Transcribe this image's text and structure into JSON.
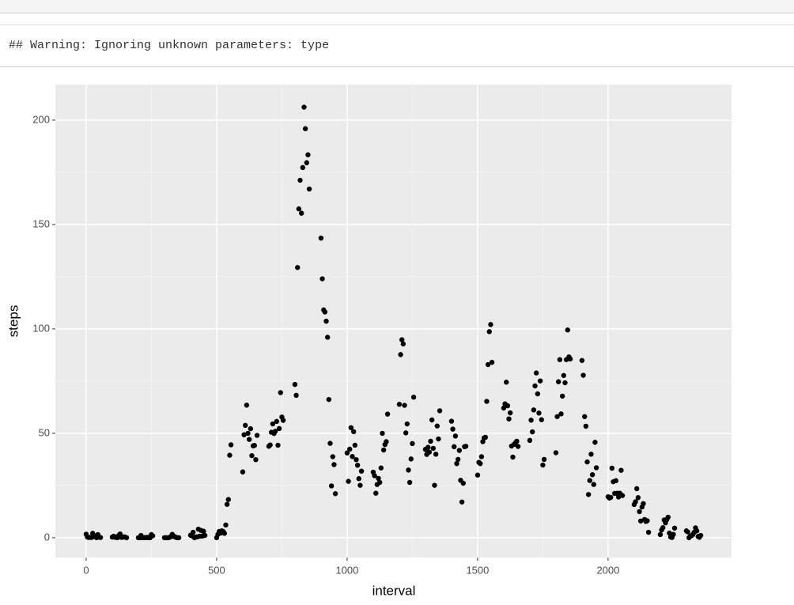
{
  "output": {
    "warning": "## Warning: Ignoring unknown parameters: type"
  },
  "chart_data": {
    "type": "scatter",
    "x_label": "interval",
    "y_label": "steps",
    "color": "#000000",
    "grid": true,
    "xlim": [
      -118,
      2473
    ],
    "ylim": [
      -9.5,
      217
    ],
    "xticks": [
      0,
      500,
      1000,
      1500,
      2000
    ],
    "yticks": [
      0,
      50,
      100,
      150,
      200
    ],
    "x": [
      0,
      5,
      10,
      15,
      20,
      25,
      30,
      35,
      40,
      45,
      50,
      55,
      100,
      105,
      110,
      115,
      120,
      125,
      130,
      135,
      140,
      145,
      150,
      155,
      200,
      205,
      210,
      215,
      220,
      225,
      230,
      235,
      240,
      245,
      250,
      255,
      300,
      305,
      310,
      315,
      320,
      325,
      330,
      335,
      340,
      345,
      350,
      355,
      400,
      405,
      410,
      415,
      420,
      425,
      430,
      435,
      440,
      445,
      450,
      455,
      500,
      505,
      510,
      515,
      520,
      525,
      530,
      535,
      540,
      545,
      550,
      555,
      600,
      605,
      610,
      615,
      620,
      625,
      630,
      635,
      640,
      645,
      650,
      655,
      700,
      705,
      710,
      715,
      720,
      725,
      730,
      735,
      740,
      745,
      750,
      755,
      800,
      805,
      810,
      815,
      820,
      825,
      830,
      835,
      840,
      845,
      850,
      855,
      900,
      905,
      910,
      915,
      920,
      925,
      930,
      935,
      940,
      945,
      950,
      955,
      1000,
      1005,
      1010,
      1015,
      1020,
      1025,
      1030,
      1035,
      1040,
      1045,
      1050,
      1055,
      1100,
      1105,
      1110,
      1115,
      1120,
      1125,
      1130,
      1135,
      1140,
      1145,
      1150,
      1155,
      1200,
      1205,
      1210,
      1215,
      1220,
      1225,
      1230,
      1235,
      1240,
      1245,
      1250,
      1255,
      1300,
      1305,
      1310,
      1315,
      1320,
      1325,
      1330,
      1335,
      1340,
      1345,
      1350,
      1355,
      1400,
      1405,
      1410,
      1415,
      1420,
      1425,
      1430,
      1435,
      1440,
      1445,
      1450,
      1455,
      1500,
      1505,
      1510,
      1515,
      1520,
      1525,
      1530,
      1535,
      1540,
      1545,
      1550,
      1555,
      1600,
      1605,
      1610,
      1615,
      1620,
      1625,
      1630,
      1635,
      1640,
      1645,
      1650,
      1655,
      1700,
      1705,
      1710,
      1715,
      1720,
      1725,
      1730,
      1735,
      1740,
      1745,
      1750,
      1755,
      1800,
      1805,
      1810,
      1815,
      1820,
      1825,
      1830,
      1835,
      1840,
      1845,
      1850,
      1855,
      1900,
      1905,
      1910,
      1915,
      1920,
      1925,
      1930,
      1935,
      1940,
      1945,
      1950,
      1955,
      2000,
      2005,
      2010,
      2015,
      2020,
      2025,
      2030,
      2035,
      2040,
      2045,
      2050,
      2055,
      2100,
      2105,
      2110,
      2115,
      2120,
      2125,
      2130,
      2135,
      2140,
      2145,
      2150,
      2155,
      2200,
      2205,
      2210,
      2215,
      2220,
      2225,
      2230,
      2235,
      2240,
      2245,
      2250,
      2255,
      2300,
      2305,
      2310,
      2315,
      2320,
      2325,
      2330,
      2335,
      2340,
      2345,
      2350,
      2355
    ],
    "values": [
      1.7,
      0.3,
      0.1,
      0.2,
      0.1,
      2.1,
      0.5,
      0.9,
      0,
      1.5,
      0.3,
      0.1,
      0.3,
      0.7,
      0.2,
      0.3,
      0,
      1.1,
      1.8,
      0.2,
      0.2,
      0.4,
      0.3,
      0,
      0,
      0,
      1.1,
      0,
      0,
      0.1,
      0,
      0.2,
      0,
      0,
      1.5,
      0.9,
      0,
      0,
      0,
      0,
      0.2,
      0.6,
      1.6,
      0.6,
      0.5,
      0.1,
      0,
      0,
      1.2,
      0.9,
      2.6,
      0,
      0.3,
      0.4,
      4.1,
      0.7,
      3.5,
      0.8,
      3.1,
      1.1,
      0,
      1.6,
      3,
      2.2,
      3.3,
      3,
      2.1,
      6.1,
      16,
      18.3,
      39.5,
      44.5,
      31.5,
      49.3,
      53.8,
      63.5,
      50,
      47.1,
      52.2,
      39.3,
      44,
      44.2,
      37.4,
      49,
      43.8,
      44.4,
      50.5,
      54.5,
      49.9,
      51,
      55.7,
      44.3,
      52.3,
      69.5,
      57.8,
      56.2,
      73.4,
      68.2,
      129.4,
      157.5,
      171.2,
      155.4,
      177.3,
      206.2,
      195.9,
      179.6,
      183.4,
      167,
      143.5,
      124,
      109.1,
      108.1,
      103.7,
      96,
      66.2,
      45.2,
      24.8,
      38.8,
      35,
      21.1,
      40.6,
      27,
      42.4,
      52.7,
      38.9,
      50.8,
      44.3,
      37.4,
      34.7,
      28.3,
      25.1,
      31.9,
      31.4,
      29.7,
      21.3,
      25.5,
      28.4,
      26.5,
      33.4,
      50,
      42,
      44.6,
      46,
      59.2,
      63.9,
      87.7,
      94.8,
      92.8,
      63.4,
      50.2,
      54.5,
      32.4,
      26.5,
      37.7,
      45.1,
      67.3,
      42.3,
      39.9,
      43.3,
      41,
      46.2,
      56.4,
      42.8,
      25.1,
      40,
      53.5,
      47.3,
      60.8,
      55.8,
      52,
      43.6,
      48.7,
      35.5,
      37.5,
      41.8,
      27.5,
      17.1,
      26.1,
      43.6,
      43.8,
      30,
      36.1,
      35.5,
      38.8,
      46,
      47.8,
      48.1,
      65.3,
      82.9,
      98.7,
      102.1,
      84,
      62.1,
      64.1,
      74.5,
      63.2,
      56.9,
      59.8,
      43.9,
      38.6,
      44.7,
      45.5,
      46.2,
      43.7,
      46.6,
      56.3,
      50.7,
      61.2,
      72.7,
      78.9,
      68.9,
      59.7,
      75.1,
      56.5,
      34.8,
      37.5,
      40.7,
      58,
      74.7,
      85.3,
      59.3,
      67.8,
      77.7,
      74.2,
      85.3,
      99.5,
      86.6,
      85.6,
      84.9,
      77.8,
      58,
      53.4,
      36.3,
      20.7,
      27.4,
      40,
      30.2,
      25.5,
      45.7,
      33.5,
      19.6,
      19,
      19.3,
      33.3,
      26.8,
      21.2,
      27.3,
      21.3,
      19.5,
      21.3,
      32.3,
      20.2,
      15.9,
      17.2,
      23.5,
      19.2,
      12.5,
      8,
      14.7,
      16.3,
      8.7,
      7.8,
      8.1,
      2.6,
      1.5,
      3.7,
      4.8,
      8.5,
      7.1,
      8.7,
      9.8,
      2.2,
      0.3,
      0.1,
      1.6,
      4.6,
      3.3,
      2.8,
      0,
      0.8,
      1,
      1.6,
      2.6,
      4.7,
      3.3,
      0.6,
      0.2,
      1.1
    ]
  }
}
